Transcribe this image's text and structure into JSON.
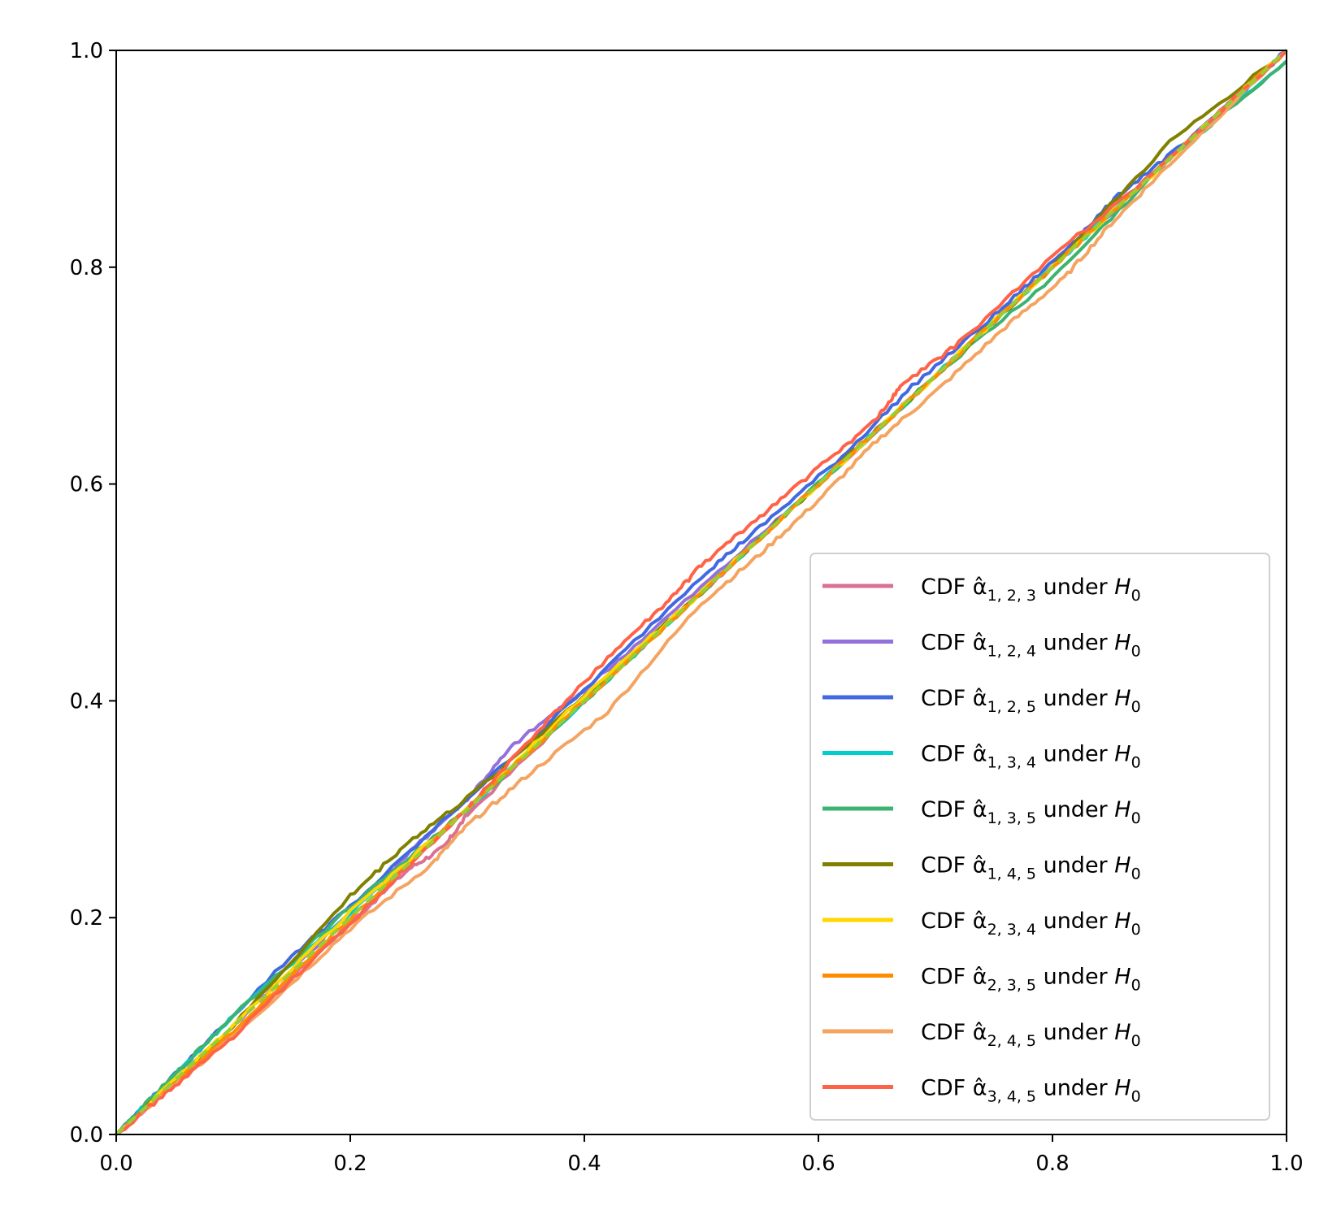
{
  "chart_data": {
    "type": "line",
    "title": "",
    "xlabel": "",
    "ylabel": "",
    "xlim": [
      0.0,
      1.0
    ],
    "ylim": [
      0.0,
      1.0
    ],
    "grid": false,
    "legend_position": "lower-right",
    "x_ticks": [
      "0.0",
      "0.2",
      "0.4",
      "0.6",
      "0.8",
      "1.0"
    ],
    "y_ticks": [
      "0.0",
      "0.2",
      "0.4",
      "0.6",
      "0.8",
      "1.0"
    ],
    "reference_line": {
      "x": [
        0,
        1
      ],
      "y": [
        0,
        1
      ],
      "style": "dashed",
      "color": "#9acd32"
    },
    "series": [
      {
        "name": "CDF α̂_{1,2,3} under H_0",
        "sub": "1, 2, 3",
        "color": "#db7093",
        "x": [
          0,
          0.1,
          0.2,
          0.25,
          0.28,
          0.3,
          0.4,
          0.5,
          0.55,
          0.6,
          0.7,
          0.8,
          0.9,
          1.0
        ],
        "y": [
          0,
          0.095,
          0.195,
          0.245,
          0.265,
          0.295,
          0.4,
          0.5,
          0.55,
          0.6,
          0.7,
          0.8,
          0.9,
          1.0
        ]
      },
      {
        "name": "CDF α̂_{1,2,4} under H_0",
        "sub": "1, 2, 4",
        "color": "#9370db",
        "x": [
          0,
          0.1,
          0.2,
          0.26,
          0.3,
          0.34,
          0.4,
          0.5,
          0.6,
          0.7,
          0.8,
          0.9,
          1.0
        ],
        "y": [
          0,
          0.1,
          0.205,
          0.27,
          0.31,
          0.36,
          0.41,
          0.505,
          0.6,
          0.7,
          0.8,
          0.9,
          1.0
        ]
      },
      {
        "name": "CDF α̂_{1,2,5} under H_0",
        "sub": "1, 2, 5",
        "color": "#4169e1",
        "x": [
          0,
          0.05,
          0.15,
          0.2,
          0.3,
          0.4,
          0.5,
          0.55,
          0.62,
          0.68,
          0.75,
          0.81,
          0.86,
          0.92,
          1.0
        ],
        "y": [
          0,
          0.055,
          0.165,
          0.21,
          0.31,
          0.41,
          0.515,
          0.56,
          0.625,
          0.69,
          0.755,
          0.815,
          0.87,
          0.92,
          1.0
        ]
      },
      {
        "name": "CDF α̂_{1,3,4} under H_0",
        "sub": "1, 3, 4",
        "color": "#00ced1",
        "x": [
          0,
          0.05,
          0.1,
          0.2,
          0.3,
          0.4,
          0.5,
          0.6,
          0.7,
          0.8,
          0.9,
          1.0
        ],
        "y": [
          0,
          0.055,
          0.11,
          0.205,
          0.3,
          0.4,
          0.5,
          0.6,
          0.7,
          0.8,
          0.9,
          0.99
        ]
      },
      {
        "name": "CDF α̂_{1,3,5} under H_0",
        "sub": "1, 3, 5",
        "color": "#3cb371",
        "x": [
          0,
          0.05,
          0.1,
          0.2,
          0.3,
          0.4,
          0.5,
          0.6,
          0.7,
          0.8,
          0.9,
          1.0
        ],
        "y": [
          0,
          0.055,
          0.11,
          0.21,
          0.3,
          0.4,
          0.5,
          0.6,
          0.7,
          0.79,
          0.9,
          0.99
        ]
      },
      {
        "name": "CDF α̂_{1,4,5} under H_0",
        "sub": "1, 4, 5",
        "color": "#808000",
        "x": [
          0,
          0.1,
          0.2,
          0.25,
          0.3,
          0.4,
          0.5,
          0.6,
          0.7,
          0.8,
          0.9,
          1.0
        ],
        "y": [
          0,
          0.1,
          0.22,
          0.27,
          0.31,
          0.405,
          0.5,
          0.6,
          0.7,
          0.8,
          0.915,
          1.0
        ]
      },
      {
        "name": "CDF α̂_{2,3,4} under H_0",
        "sub": "2, 3, 4",
        "color": "#ffd700",
        "x": [
          0,
          0.1,
          0.2,
          0.3,
          0.4,
          0.5,
          0.6,
          0.7,
          0.8,
          0.9,
          1.0
        ],
        "y": [
          0,
          0.1,
          0.205,
          0.3,
          0.405,
          0.5,
          0.6,
          0.7,
          0.8,
          0.9,
          1.0
        ]
      },
      {
        "name": "CDF α̂_{2,3,5} under H_0",
        "sub": "2, 3, 5",
        "color": "#ff8c00",
        "x": [
          0,
          0.1,
          0.2,
          0.3,
          0.4,
          0.5,
          0.6,
          0.7,
          0.8,
          0.9,
          1.0
        ],
        "y": [
          0,
          0.095,
          0.2,
          0.3,
          0.4,
          0.5,
          0.6,
          0.7,
          0.8,
          0.9,
          1.0
        ]
      },
      {
        "name": "CDF α̂_{2,4,5} under H_0",
        "sub": "2, 4, 5",
        "color": "#f4a460",
        "x": [
          0,
          0.05,
          0.13,
          0.2,
          0.27,
          0.3,
          0.35,
          0.42,
          0.5,
          0.55,
          0.6,
          0.65,
          0.7,
          0.76,
          0.81,
          0.85,
          0.9,
          1.0
        ],
        "y": [
          0,
          0.045,
          0.12,
          0.19,
          0.25,
          0.285,
          0.33,
          0.39,
          0.49,
          0.535,
          0.585,
          0.64,
          0.685,
          0.745,
          0.79,
          0.84,
          0.895,
          1.0
        ]
      },
      {
        "name": "CDF α̂_{3,4,5} under H_0",
        "sub": "3, 4, 5",
        "color": "#ff6347",
        "x": [
          0,
          0.05,
          0.1,
          0.2,
          0.3,
          0.35,
          0.42,
          0.47,
          0.5,
          0.55,
          0.6,
          0.65,
          0.67,
          0.72,
          0.8,
          0.9,
          1.0
        ],
        "y": [
          0,
          0.045,
          0.09,
          0.195,
          0.3,
          0.36,
          0.44,
          0.49,
          0.525,
          0.57,
          0.615,
          0.66,
          0.69,
          0.73,
          0.81,
          0.9,
          1.0
        ]
      }
    ]
  }
}
